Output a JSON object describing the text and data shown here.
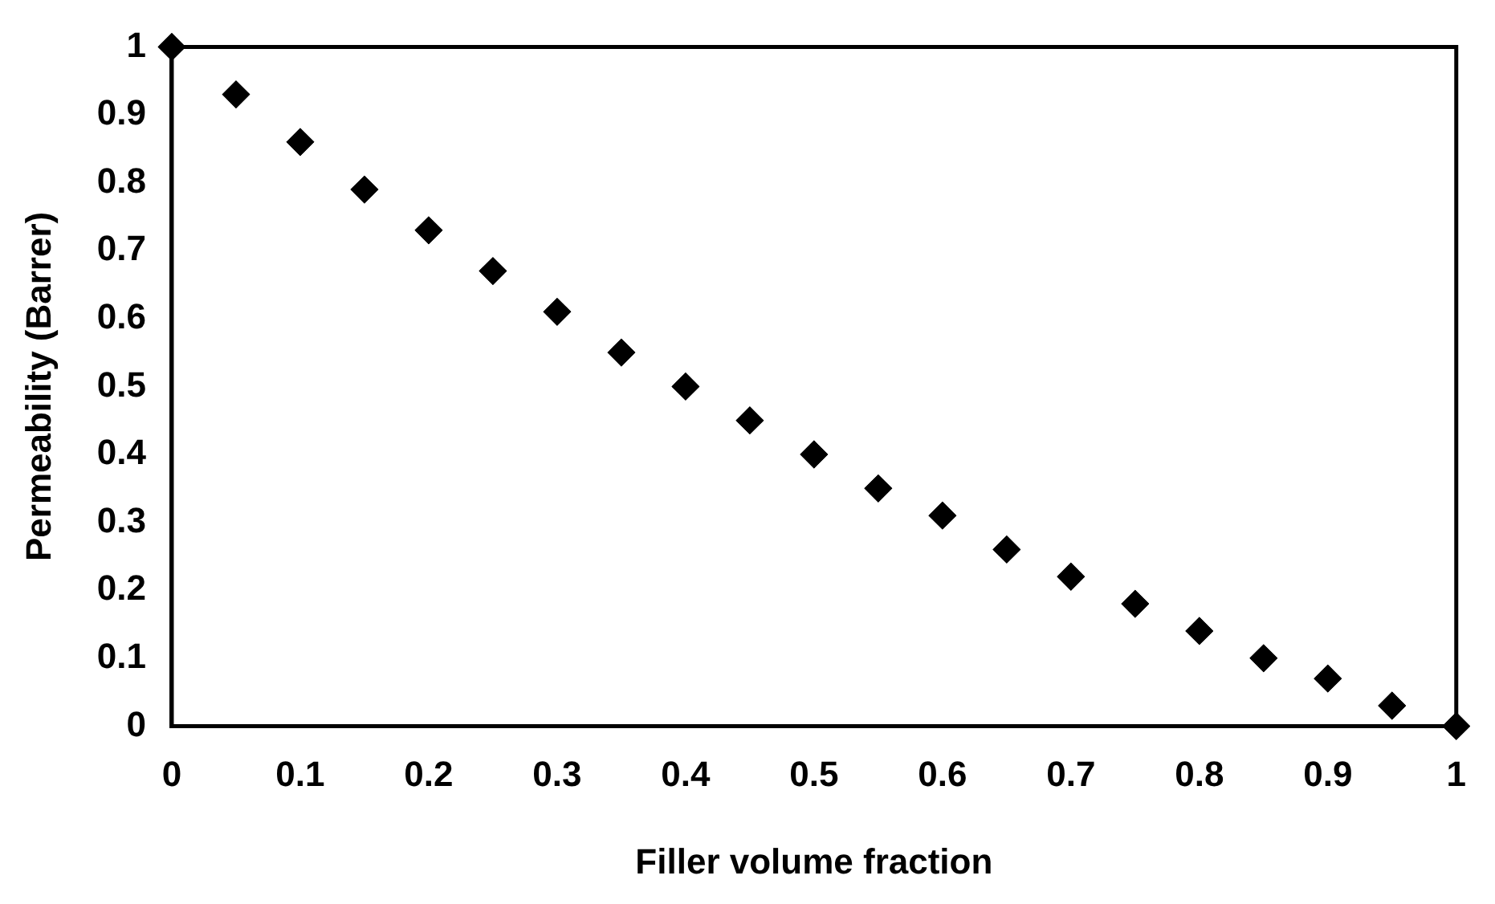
{
  "chart_data": {
    "type": "scatter",
    "xlabel": "Filler volume fraction",
    "ylabel": "Permeability (Barrer)",
    "x": [
      0,
      0.05,
      0.1,
      0.15,
      0.2,
      0.25,
      0.3,
      0.35,
      0.4,
      0.45,
      0.5,
      0.55,
      0.6,
      0.65,
      0.7,
      0.75,
      0.8,
      0.85,
      0.9,
      0.95,
      1
    ],
    "series": [
      {
        "color": "#000000",
        "values": [
          1,
          0.93,
          0.86,
          0.79,
          0.73,
          0.67,
          0.61,
          0.55,
          0.5,
          0.45,
          0.4,
          0.35,
          0.31,
          0.26,
          0.22,
          0.18,
          0.14,
          0.1,
          0.07,
          0.03,
          0
        ]
      }
    ],
    "xlim": [
      0,
      1
    ],
    "xticks": [
      0,
      0.1,
      0.2,
      0.3,
      0.4,
      0.5,
      0.6,
      0.7,
      0.8,
      0.9,
      1
    ],
    "ylim": [
      0,
      1
    ],
    "yticks": [
      0,
      0.1,
      0.2,
      0.3,
      0.4,
      0.5,
      0.6,
      0.7,
      0.8,
      0.9,
      1
    ],
    "grid": false,
    "legend": false,
    "marker": "diamond"
  }
}
